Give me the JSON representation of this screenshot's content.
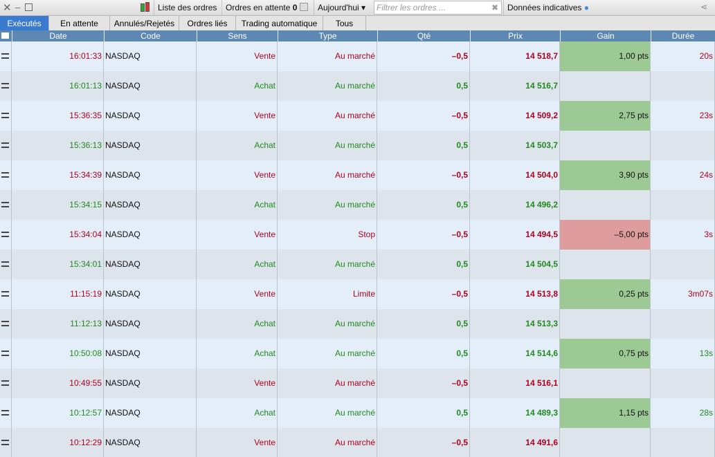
{
  "toolbar": {
    "orders_list": "Liste des ordres",
    "pending_orders": "Ordres en attente",
    "pending_count": "0",
    "period": "Aujourd'hui",
    "filter_placeholder": "Filtrer les ordres ...",
    "indicative": "Données indicatives"
  },
  "tabs": [
    "Exécutés",
    "En attente",
    "Annulés/Rejetés",
    "Ordres liés",
    "Trading automatique",
    "Tous"
  ],
  "table": {
    "columns": [
      "Date",
      "Code",
      "Sens",
      "Type",
      "Qté",
      "Prix",
      "Gain",
      "Durée"
    ],
    "rows": [
      {
        "date": "16:01:33",
        "code": "NASDAQ",
        "side": "Vente",
        "type": "Au marché",
        "qty": "–0,5",
        "price": "14 518,7",
        "gain": "1,00 pts",
        "duration": "20s",
        "color": "#b0001e",
        "gain_color": "#9dc995"
      },
      {
        "date": "16:01:13",
        "code": "NASDAQ",
        "side": "Achat",
        "type": "Au marché",
        "qty": "0,5",
        "price": "14 516,7",
        "color": "#1f8a1f"
      },
      {
        "date": "15:36:35",
        "code": "NASDAQ",
        "side": "Vente",
        "type": "Au marché",
        "qty": "–0,5",
        "price": "14 509,2",
        "gain": "2,75 pts",
        "duration": "23s",
        "color": "#b0001e",
        "gain_color": "#9dc995"
      },
      {
        "date": "15:36:13",
        "code": "NASDAQ",
        "side": "Achat",
        "type": "Au marché",
        "qty": "0,5",
        "price": "14 503,7",
        "color": "#1f8a1f"
      },
      {
        "date": "15:34:39",
        "code": "NASDAQ",
        "side": "Vente",
        "type": "Au marché",
        "qty": "–0,5",
        "price": "14 504,0",
        "gain": "3,90 pts",
        "duration": "24s",
        "color": "#b0001e",
        "gain_color": "#9dc995"
      },
      {
        "date": "15:34:15",
        "code": "NASDAQ",
        "side": "Achat",
        "type": "Au marché",
        "qty": "0,5",
        "price": "14 496,2",
        "color": "#1f8a1f"
      },
      {
        "date": "15:34:04",
        "code": "NASDAQ",
        "side": "Vente",
        "type": "Stop",
        "qty": "–0,5",
        "price": "14 494,5",
        "gain": "–5,00 pts",
        "duration": "3s",
        "color": "#b0001e",
        "gain_color": "#de9c9c"
      },
      {
        "date": "15:34:01",
        "code": "NASDAQ",
        "side": "Achat",
        "type": "Au marché",
        "qty": "0,5",
        "price": "14 504,5",
        "color": "#1f8a1f"
      },
      {
        "date": "11:15:19",
        "code": "NASDAQ",
        "side": "Vente",
        "type": "Limite",
        "qty": "–0,5",
        "price": "14 513,8",
        "gain": "0,25 pts",
        "duration": "3m07s",
        "color": "#b0001e",
        "gain_color": "#9dc995"
      },
      {
        "date": "11:12:13",
        "code": "NASDAQ",
        "side": "Achat",
        "type": "Au marché",
        "qty": "0,5",
        "price": "14 513,3",
        "color": "#1f8a1f"
      },
      {
        "date": "10:50:08",
        "code": "NASDAQ",
        "side": "Achat",
        "type": "Au marché",
        "qty": "0,5",
        "price": "14 514,6",
        "gain": "0,75 pts",
        "duration": "13s",
        "color": "#1f8a1f",
        "gain_color": "#9dc995"
      },
      {
        "date": "10:49:55",
        "code": "NASDAQ",
        "side": "Vente",
        "type": "Au marché",
        "qty": "–0,5",
        "price": "14 516,1",
        "color": "#b0001e"
      },
      {
        "date": "10:12:57",
        "code": "NASDAQ",
        "side": "Achat",
        "type": "Au marché",
        "qty": "0,5",
        "price": "14 489,3",
        "gain": "1,15 pts",
        "duration": "28s",
        "color": "#1f8a1f",
        "gain_color": "#9dc995"
      },
      {
        "date": "10:12:29",
        "code": "NASDAQ",
        "side": "Vente",
        "type": "Au marché",
        "qty": "–0,5",
        "price": "14 491,6",
        "color": "#b0001e"
      }
    ]
  }
}
